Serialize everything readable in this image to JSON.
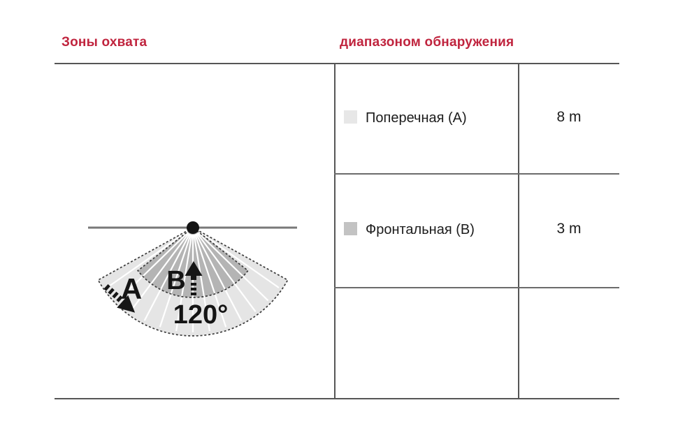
{
  "headings": {
    "left": "Зоны охвата",
    "right": "диапазоном обнаружения",
    "accent_color": "#c0243e"
  },
  "table": {
    "rows": [
      {
        "label": "Поперечная (А)",
        "value": "8 m",
        "swatch_color": "#e7e7e7"
      },
      {
        "label": "Фронтальная (В)",
        "value": "3 m",
        "swatch_color": "#c3c3c3"
      },
      {
        "label": "",
        "value": "",
        "swatch_color": ""
      }
    ]
  },
  "diagram": {
    "zone_a_label": "A",
    "zone_b_label": "B",
    "angle_label": "120°",
    "outer_zone_color": "#e5e5e5",
    "inner_zone_color": "#b4b4b4",
    "wall_color": "#787878",
    "sensor_color": "#141414"
  }
}
